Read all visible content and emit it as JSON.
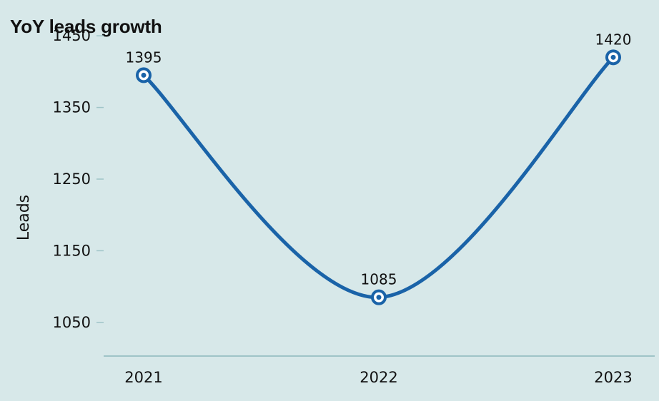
{
  "chart_data": {
    "type": "line",
    "title": "YoY leads growth",
    "xlabel": "",
    "ylabel": "Leads",
    "categories": [
      "2021",
      "2022",
      "2023"
    ],
    "series": [
      {
        "values": [
          1395,
          1085,
          1420
        ]
      }
    ],
    "data_labels": [
      "1395",
      "1085",
      "1420"
    ],
    "y_ticks": [
      1050,
      1150,
      1250,
      1350,
      1450
    ],
    "y_tick_labels": [
      "1050",
      "1150",
      "1250",
      "1350",
      "1450"
    ],
    "ylim": [
      1003,
      1500
    ],
    "grid": false,
    "line_style": "smooth",
    "colors": {
      "line": "#1a63a8",
      "background": "#d7e8e9",
      "axis": "#9fc4c7",
      "marker_fill": "#ffffff"
    }
  }
}
